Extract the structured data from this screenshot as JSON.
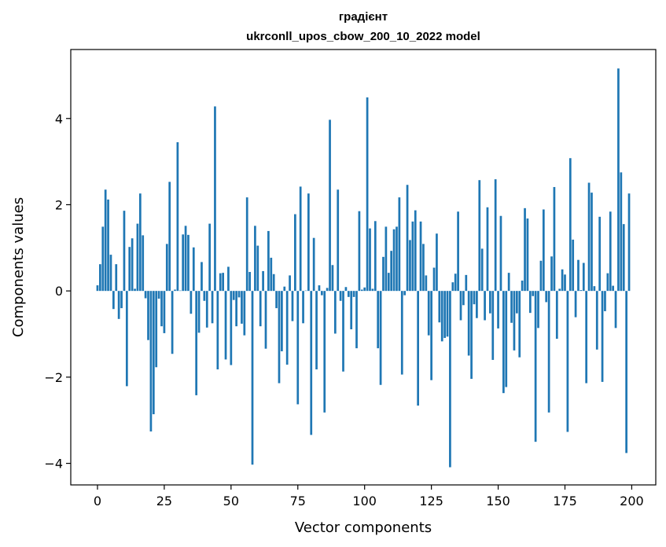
{
  "chart_data": {
    "type": "bar",
    "title_line1": "градієнт",
    "title_line2": "ukrconll_upos_cbow_200_10_2022 model",
    "xlabel": "Vector components",
    "ylabel": "Components values",
    "xlim": [
      -10,
      209
    ],
    "ylim": [
      -4.5,
      5.6
    ],
    "xticks": [
      0,
      25,
      50,
      75,
      100,
      125,
      150,
      175,
      200
    ],
    "xtick_labels": [
      "0",
      "25",
      "50",
      "75",
      "100",
      "125",
      "150",
      "175",
      "200"
    ],
    "yticks": [
      -4,
      -2,
      0,
      2,
      4
    ],
    "ytick_labels": [
      "−4",
      "−2",
      "0",
      "2",
      "4"
    ],
    "bar_color": "#1f77b4",
    "grid": false,
    "values": [
      0.13,
      0.62,
      1.49,
      2.35,
      2.12,
      0.84,
      -0.42,
      0.62,
      -0.65,
      -0.4,
      1.86,
      -2.21,
      1.02,
      1.22,
      0.05,
      1.56,
      2.26,
      1.29,
      -0.17,
      -1.14,
      -3.26,
      -2.86,
      -1.77,
      -0.18,
      -0.82,
      -0.98,
      1.09,
      2.53,
      -1.46,
      0.03,
      3.45,
      0.01,
      1.31,
      1.51,
      1.3,
      -0.53,
      1.01,
      -2.42,
      -0.97,
      0.67,
      -0.23,
      -0.85,
      1.56,
      -0.75,
      4.28,
      -1.82,
      0.41,
      0.42,
      -1.59,
      0.56,
      -1.72,
      -0.21,
      -0.82,
      -0.15,
      -0.76,
      -1.03,
      2.17,
      0.44,
      -4.03,
      1.51,
      1.05,
      -0.82,
      0.46,
      -1.34,
      1.39,
      0.77,
      0.39,
      -0.4,
      -2.14,
      -1.4,
      0.1,
      -1.71,
      0.36,
      -0.7,
      1.78,
      -2.63,
      2.42,
      -0.75,
      0.01,
      2.26,
      -3.34,
      1.23,
      -1.82,
      0.13,
      -0.1,
      -2.82,
      0.07,
      3.97,
      0.6,
      -0.99,
      2.35,
      -0.23,
      -1.87,
      0.09,
      -0.14,
      -0.89,
      -0.14,
      -1.33,
      1.85,
      0.03,
      0.08,
      4.49,
      1.45,
      0.05,
      1.62,
      -1.33,
      -2.18,
      0.79,
      1.49,
      0.42,
      0.93,
      1.43,
      1.49,
      2.17,
      -1.94,
      -0.1,
      2.46,
      1.18,
      1.61,
      1.87,
      -2.66,
      1.61,
      1.09,
      0.36,
      -1.03,
      -2.07,
      0.54,
      1.33,
      -0.73,
      -1.17,
      -1.09,
      -1.06,
      -4.09,
      0.2,
      0.4,
      1.84,
      -0.68,
      -0.33,
      0.37,
      -1.5,
      -2.04,
      -0.31,
      -0.63,
      2.57,
      0.98,
      -0.68,
      1.94,
      -0.52,
      -1.6,
      2.59,
      -0.87,
      1.74,
      -2.37,
      -2.23,
      0.42,
      -0.74,
      -1.38,
      -0.52,
      -1.54,
      0.24,
      1.92,
      1.68,
      -0.51,
      -0.12,
      -3.5,
      -0.86,
      0.7,
      1.89,
      -0.26,
      -2.82,
      0.8,
      2.41,
      -1.11,
      0.05,
      0.5,
      0.38,
      -3.27,
      3.08,
      1.19,
      -0.61,
      0.72,
      0.02,
      0.65,
      -2.14,
      2.51,
      2.28,
      0.11,
      -1.36,
      1.72,
      -2.11,
      -0.47,
      0.41,
      1.84,
      0.12,
      -0.86,
      5.16,
      2.75,
      1.55,
      -3.76,
      2.26
    ]
  }
}
